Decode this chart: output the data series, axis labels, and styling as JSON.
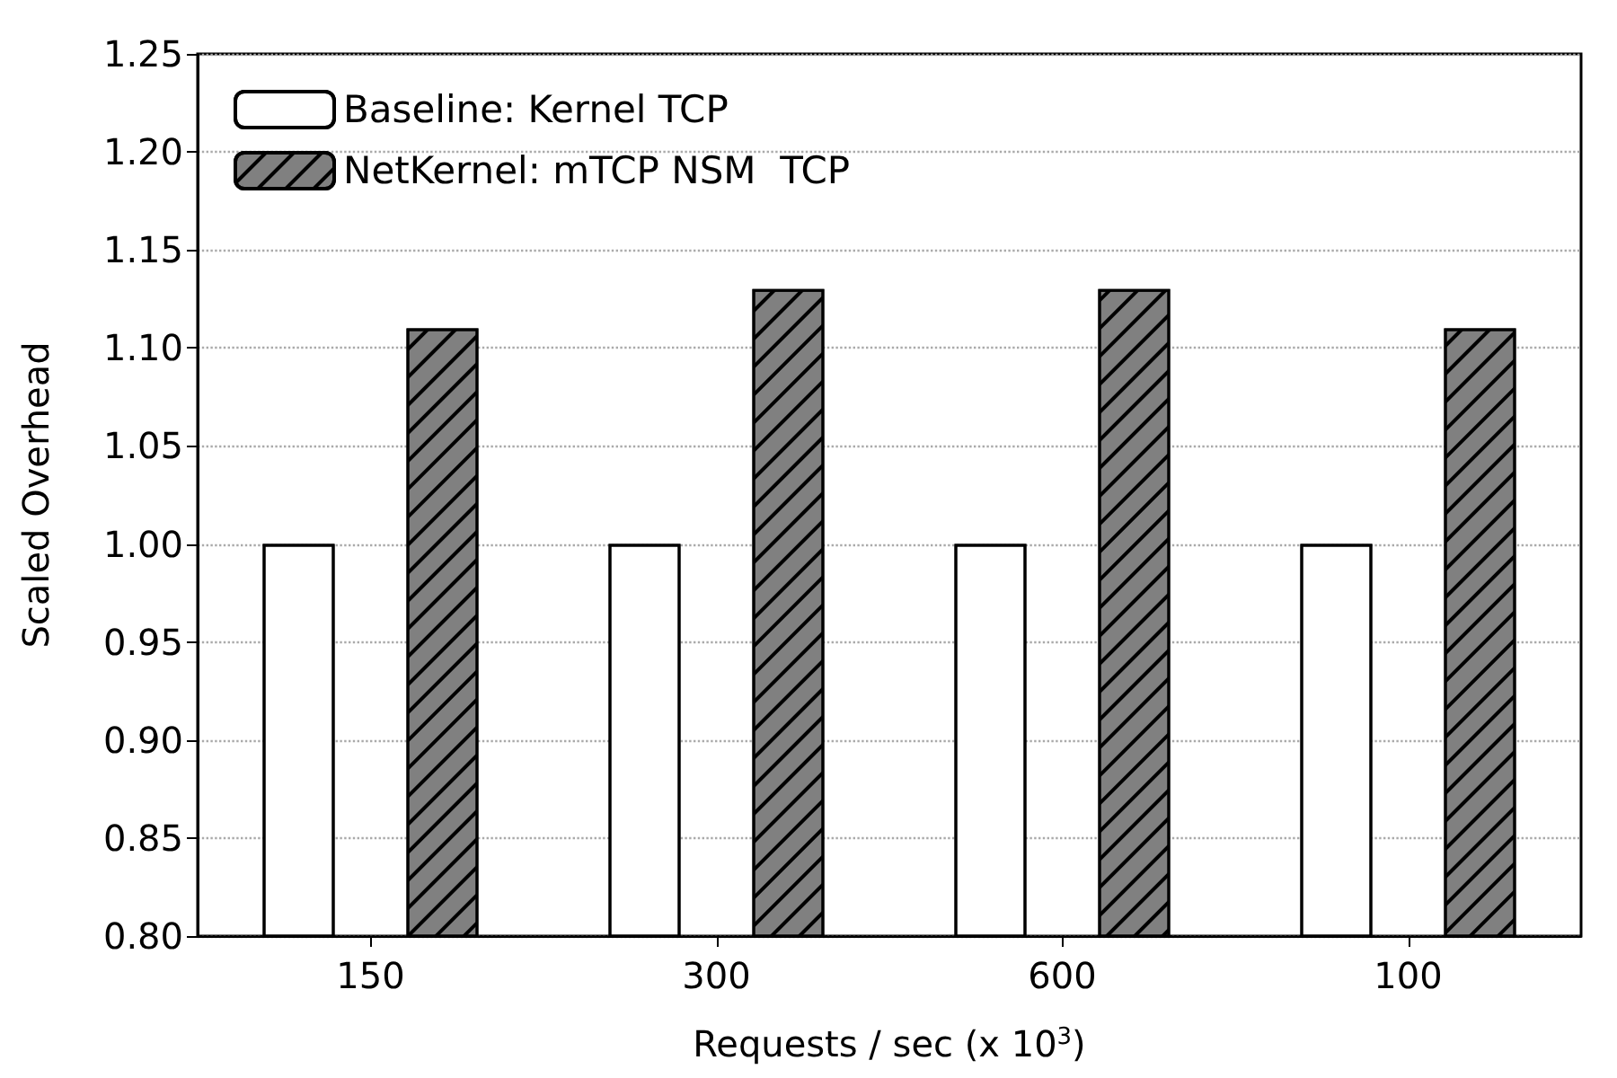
{
  "chart_data": {
    "type": "bar",
    "xlabel": "Requests / sec (x 10$^{3}$)",
    "ylabel": "Scaled Overhead",
    "categories": [
      "150",
      "300",
      "600",
      "100"
    ],
    "series": [
      {
        "name": "Baseline: Kernel TCP",
        "color": "#ffffff",
        "values": [
          1.0,
          1.0,
          1.0,
          1.0
        ]
      },
      {
        "name": "NetKernel: mTCP NSM  TCP",
        "color": "#808080",
        "values": [
          1.11,
          1.13,
          1.13,
          1.11
        ]
      }
    ],
    "ylim": [
      0.8,
      1.25
    ],
    "yticks": [
      {
        "value": 0.8,
        "label": "0.80"
      },
      0.85,
      {
        "value": 0.9,
        "label": "0.90"
      },
      0.95,
      {
        "value": 1.0,
        "label": "1.00"
      },
      1.05,
      {
        "value": 1.1,
        "label": "1.10"
      },
      1.15,
      {
        "value": 1.2,
        "label": "1.20"
      },
      1.25
    ],
    "grid": "y",
    "legend": "top left"
  }
}
